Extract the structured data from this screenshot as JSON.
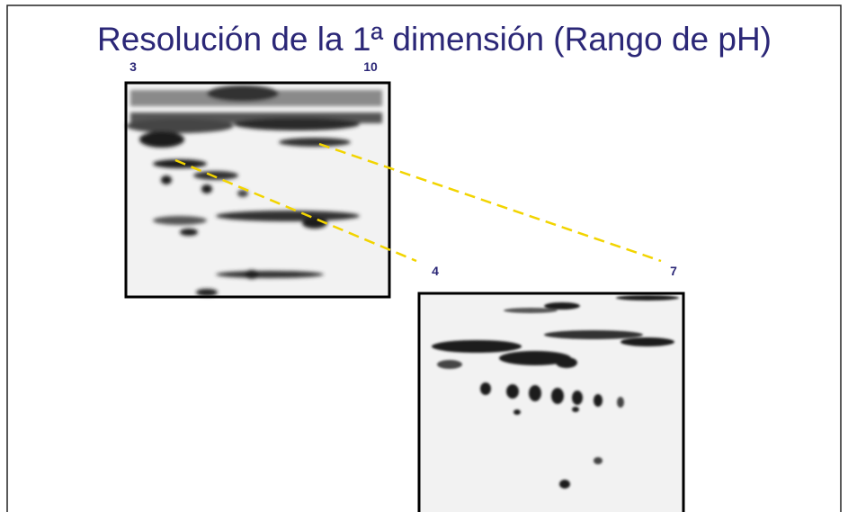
{
  "header": {
    "title": "Resolución de la 1ª dimensión (Rango de pH)"
  },
  "gel_wide": {
    "label_left": "3",
    "label_right": "10"
  },
  "gel_narrow": {
    "label_left": "4",
    "label_right": "7"
  }
}
